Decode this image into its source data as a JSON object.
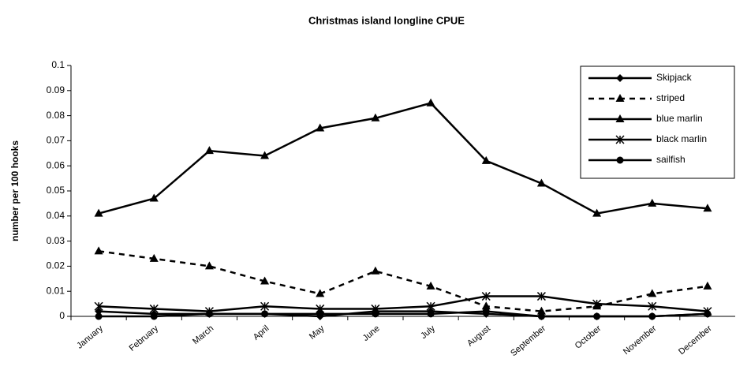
{
  "chart_data": {
    "type": "line",
    "title": "Christmas island longline CPUE",
    "y_label": "number per 100 hooks",
    "categories": [
      "January",
      "February",
      "March",
      "April",
      "May",
      "June",
      "July",
      "August",
      "September",
      "October",
      "November",
      "December"
    ],
    "series": [
      {
        "name": "Skipjack",
        "color": "#000000",
        "marker": "diamond",
        "dash": false,
        "values": [
          0.002,
          0.001,
          0.001,
          0.001,
          0.0,
          0.002,
          0.002,
          0.001,
          0.0,
          0.0,
          0.0,
          0.001
        ]
      },
      {
        "name": "striped",
        "color": "#000000",
        "marker": "triangle",
        "dash": true,
        "values": [
          0.026,
          0.023,
          0.02,
          0.014,
          0.009,
          0.018,
          0.012,
          0.004,
          0.002,
          0.004,
          0.009,
          0.012
        ]
      },
      {
        "name": "blue marlin",
        "color": "#000000",
        "marker": "triangle",
        "dash": false,
        "values": [
          0.041,
          0.047,
          0.066,
          0.064,
          0.075,
          0.079,
          0.085,
          0.062,
          0.053,
          0.041,
          0.045,
          0.043
        ]
      },
      {
        "name": "black marlin",
        "color": "#000000",
        "marker": "star",
        "dash": false,
        "values": [
          0.004,
          0.003,
          0.002,
          0.004,
          0.003,
          0.003,
          0.004,
          0.008,
          0.008,
          0.005,
          0.004,
          0.002
        ]
      },
      {
        "name": "sailfish",
        "color": "#000000",
        "marker": "circle",
        "dash": false,
        "values": [
          0.0,
          0.0,
          0.001,
          0.001,
          0.001,
          0.001,
          0.001,
          0.002,
          0.0,
          0.0,
          0.0,
          0.001
        ]
      }
    ],
    "ylim": [
      0,
      0.1
    ],
    "yticks": [
      0,
      0.01,
      0.02,
      0.03,
      0.04,
      0.05,
      0.06,
      0.07,
      0.08,
      0.09,
      0.1
    ],
    "grid": false,
    "legend": "top-right"
  }
}
